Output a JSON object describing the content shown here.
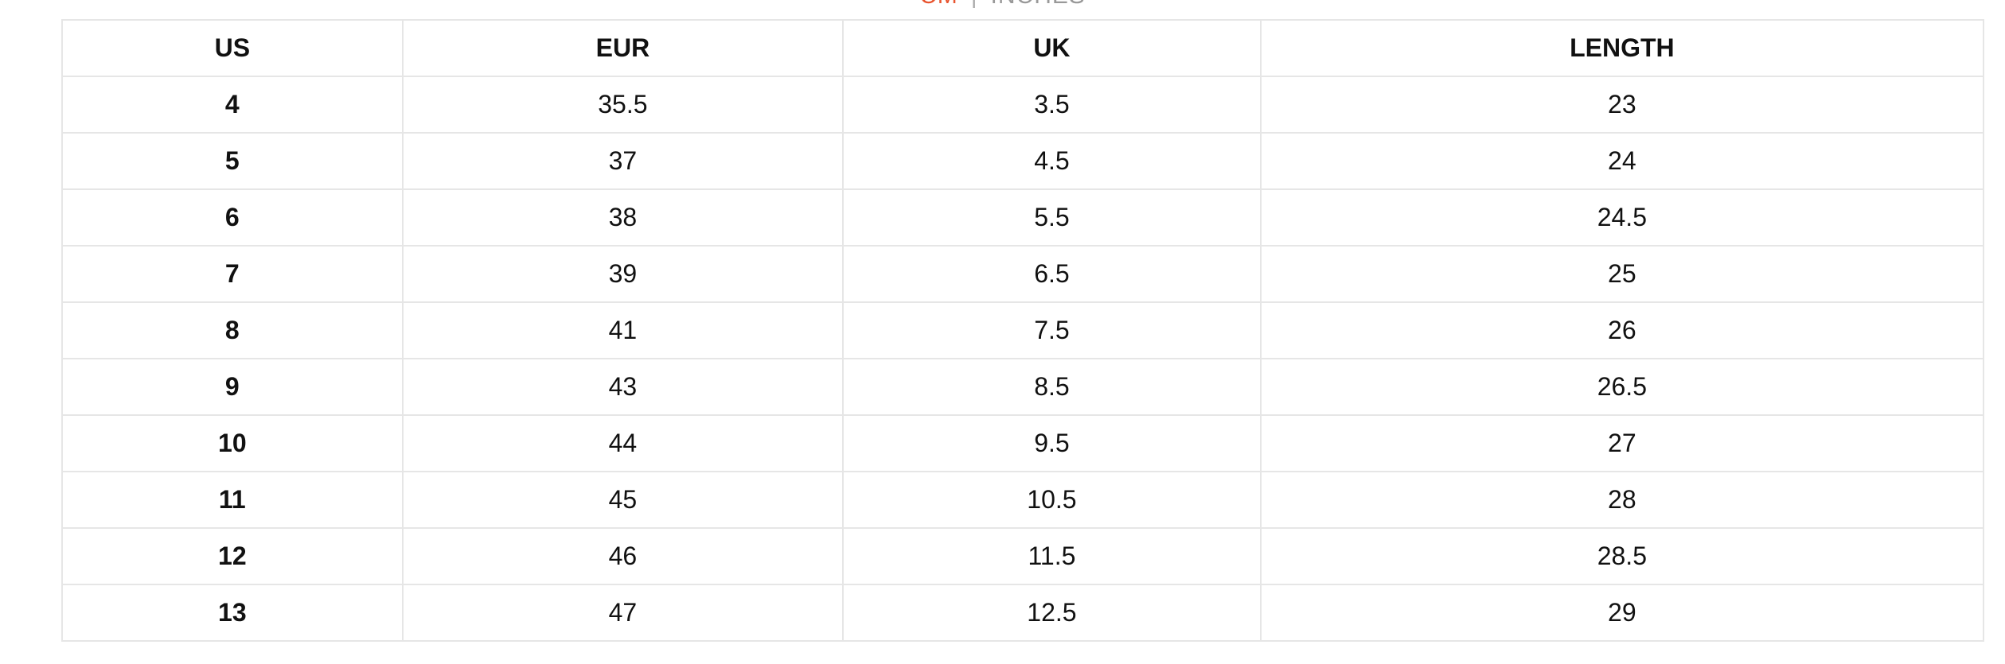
{
  "unit_toggle": {
    "cm": "CM",
    "separator": "|",
    "inches": "INCHES",
    "active": "cm",
    "active_color": "#e8542f"
  },
  "table": {
    "headers": [
      "US",
      "EUR",
      "UK",
      "LENGTH"
    ],
    "rows": [
      [
        "4",
        "35.5",
        "3.5",
        "23"
      ],
      [
        "5",
        "37",
        "4.5",
        "24"
      ],
      [
        "6",
        "38",
        "5.5",
        "24.5"
      ],
      [
        "7",
        "39",
        "6.5",
        "25"
      ],
      [
        "8",
        "41",
        "7.5",
        "26"
      ],
      [
        "9",
        "43",
        "8.5",
        "26.5"
      ],
      [
        "10",
        "44",
        "9.5",
        "27"
      ],
      [
        "11",
        "45",
        "10.5",
        "28"
      ],
      [
        "12",
        "46",
        "11.5",
        "28.5"
      ],
      [
        "13",
        "47",
        "12.5",
        "29"
      ]
    ]
  }
}
